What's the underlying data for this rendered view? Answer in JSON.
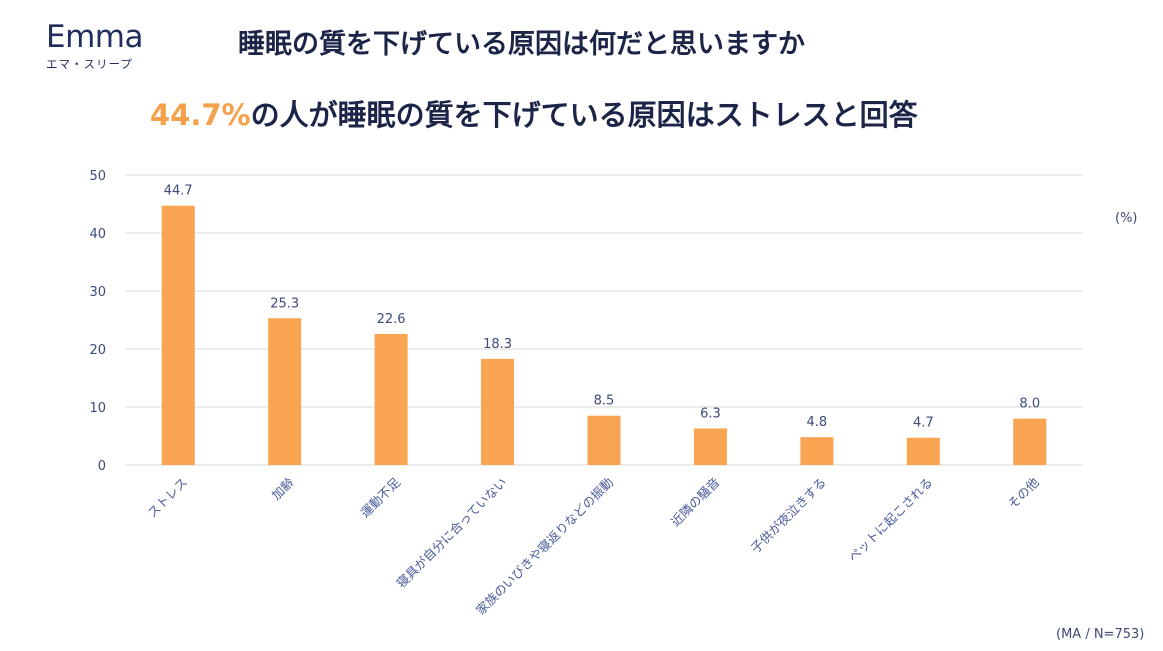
{
  "logo": {
    "word": "Emma",
    "sub": "エマ・スリープ"
  },
  "title": "睡眠の質を下げている原因は何だと思いますか",
  "subtitle": {
    "highlight": "44.7%",
    "rest": "の人が睡眠の質を下げている原因はストレスと回答"
  },
  "unit_label": "(%)",
  "note": "(MA / N=753)",
  "colors": {
    "bar": "#f9a451",
    "text": "#1c2548",
    "axis_text": "#3d4a7a",
    "grid": "#d9d9d9",
    "highlight": "#f5a04b"
  },
  "chart_data": {
    "type": "bar",
    "categories": [
      "ストレス",
      "加齢",
      "運動不足",
      "寝具が自分に合っていない",
      "家族のいびきや寝返りなどの振動",
      "近隣の騒音",
      "子供が夜泣きする",
      "ペットに起こされる",
      "その他"
    ],
    "values": [
      44.7,
      25.3,
      22.6,
      18.3,
      8.5,
      6.3,
      4.8,
      4.7,
      8.0
    ],
    "value_labels": [
      "44.7",
      "25.3",
      "22.6",
      "18.3",
      "8.5",
      "6.3",
      "4.8",
      "4.7",
      "8.0"
    ],
    "yticks": [
      0,
      10,
      20,
      30,
      40,
      50
    ],
    "ylim": [
      0,
      50
    ],
    "grid": true,
    "legend": "none"
  }
}
